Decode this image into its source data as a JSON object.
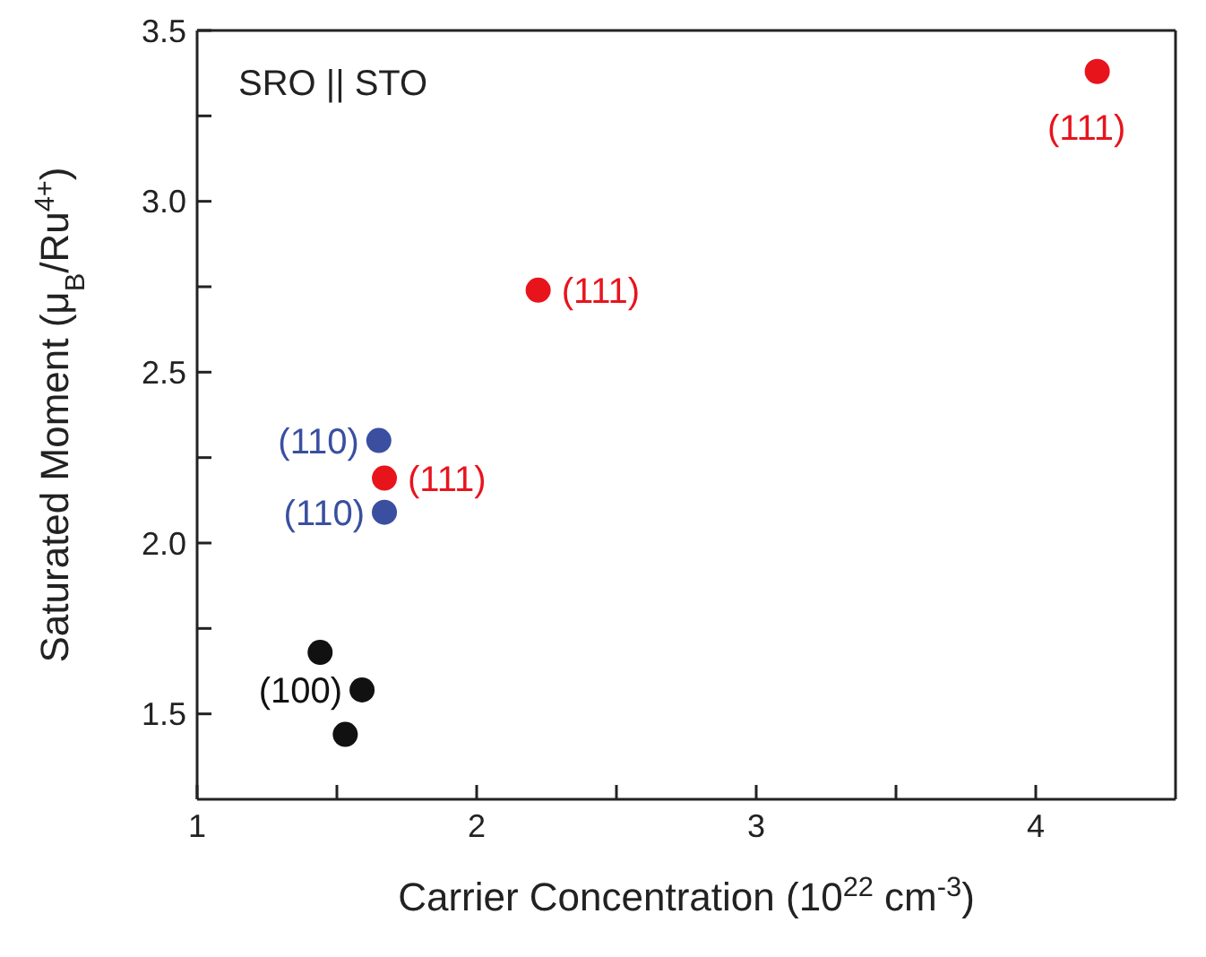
{
  "chart_data": {
    "type": "scatter",
    "xlabel": "Carrier Concentration (10$^{22}$ cm$^{-3}$)",
    "ylabel": "Saturated Moment (μ$_{B}$/Ru$^{4+}$)",
    "series": [
      {
        "color": "#e8141c",
        "x": [
          4.22,
          2.22,
          1.67
        ],
        "values": [
          3.38,
          2.74,
          2.19
        ]
      },
      {
        "color": "#3a4fa0",
        "x": [
          1.65,
          1.67
        ],
        "values": [
          2.3,
          2.09
        ]
      },
      {
        "color": "#111111",
        "x": [
          1.44,
          1.59,
          1.53
        ],
        "values": [
          1.68,
          1.57,
          1.44
        ]
      }
    ],
    "xlim": [
      1,
      4.5
    ],
    "xticks": [
      1,
      {
        "value": 1.5,
        "label": null
      },
      2,
      {
        "value": 2.5,
        "label": null
      },
      3,
      {
        "value": 3.5,
        "label": null
      },
      4
    ],
    "ylim": [
      1.25,
      3.5
    ],
    "yticks": [
      {
        "value": 1.5,
        "label": "1.5"
      },
      {
        "value": 1.75,
        "label": null
      },
      {
        "value": 2,
        "label": "2.0"
      },
      {
        "value": 2.25,
        "label": null
      },
      {
        "value": 2.5,
        "label": "2.5"
      },
      {
        "value": 2.75,
        "label": null
      },
      {
        "value": 3,
        "label": "3.0"
      },
      {
        "value": 3.25,
        "label": null
      },
      {
        "value": 3.5,
        "label": "3.5"
      }
    ],
    "marker": "circle",
    "annotations": [
      "SRO || STO",
      {
        "text": "(111)",
        "x": 4.22,
        "y": 3.38
      },
      {
        "text": "(111)",
        "x": 2.22,
        "y": 2.74
      },
      {
        "text": "(110)",
        "x": 1.65,
        "y": 2.3
      },
      {
        "text": "(111)",
        "x": 1.67,
        "y": 2.19
      },
      {
        "text": "(110)",
        "x": 1.67,
        "y": 2.09
      },
      {
        "text": "(100)",
        "x": 1.59,
        "y": 1.57
      }
    ]
  }
}
